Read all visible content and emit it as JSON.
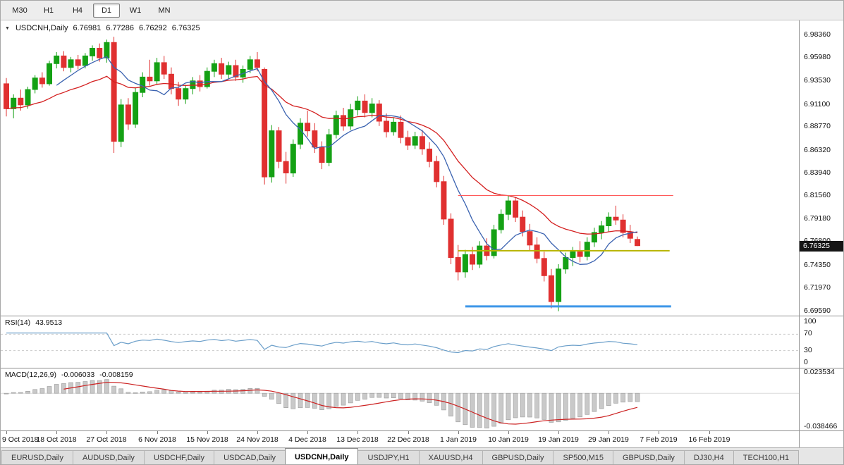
{
  "toolbar": {
    "timeframes": [
      {
        "label": "M30",
        "active": false
      },
      {
        "label": "H1",
        "active": false
      },
      {
        "label": "H4",
        "active": false
      },
      {
        "label": "D1",
        "active": true
      },
      {
        "label": "W1",
        "active": false
      },
      {
        "label": "MN",
        "active": false
      }
    ]
  },
  "chart": {
    "title": {
      "symbol": "USDCNH,Daily",
      "open": "6.76981",
      "high": "6.77286",
      "low": "6.76292",
      "close": "6.76325"
    },
    "price_badge": "6.76325"
  },
  "indicators": {
    "rsi": {
      "label": "RSI(14)",
      "value": "43.9513"
    },
    "macd": {
      "label": "MACD(12,26,9)",
      "value_main": "-0.006033",
      "value_signal": "-0.008159"
    }
  },
  "colors": {
    "bull": "#14a114",
    "bear": "#e03030",
    "ma_fast": "#3a62b0",
    "ma_slow": "#d42020",
    "rsi_line": "#6a9ec9",
    "rsi_guide": "#c9c9c9",
    "macd_hist_fill": "#c9c9c9",
    "macd_hist_stroke": "#9a9a9a",
    "macd_signal": "#cc2222",
    "resistance": "#ff5a5a",
    "support": "#b8b400",
    "lower_support": "#3e97e8",
    "badge_bg": "#151515"
  },
  "chart_data": {
    "type": "candlestick",
    "symbol": "USDCNH",
    "timeframe": "Daily",
    "ylim": [
      6.6904,
      6.998
    ],
    "price_axis": [
      {
        "label": "6.98360",
        "value": 6.9836
      },
      {
        "label": "6.95980",
        "value": 6.9598
      },
      {
        "label": "6.93530",
        "value": 6.9353
      },
      {
        "label": "6.91100",
        "value": 6.911
      },
      {
        "label": "6.88770",
        "value": 6.8877
      },
      {
        "label": "6.86320",
        "value": 6.8632
      },
      {
        "label": "6.83940",
        "value": 6.8394
      },
      {
        "label": "6.81560",
        "value": 6.8156
      },
      {
        "label": "6.79180",
        "value": 6.7918
      },
      {
        "label": "6.76800",
        "value": 6.768
      },
      {
        "label": "6.74350",
        "value": 6.7435
      },
      {
        "label": "6.71970",
        "value": 6.7197
      },
      {
        "label": "6.69590",
        "value": 6.6959
      }
    ],
    "x_ticks": [
      {
        "label": "9 Oct 2018",
        "bar": 0
      },
      {
        "label": "18 Oct 2018",
        "bar": 7
      },
      {
        "label": "27 Oct 2018",
        "bar": 14
      },
      {
        "label": "6 Nov 2018",
        "bar": 21
      },
      {
        "label": "15 Nov 2018",
        "bar": 28
      },
      {
        "label": "24 Nov 2018",
        "bar": 35
      },
      {
        "label": "4 Dec 2018",
        "bar": 42
      },
      {
        "label": "13 Dec 2018",
        "bar": 49
      },
      {
        "label": "22 Dec 2018",
        "bar": 56
      },
      {
        "label": "1 Jan 2019",
        "bar": 63
      },
      {
        "label": "10 Jan 2019",
        "bar": 70
      },
      {
        "label": "19 Jan 2019",
        "bar": 77
      },
      {
        "label": "29 Jan 2019",
        "bar": 84
      },
      {
        "label": "7 Feb 2019",
        "bar": 91
      },
      {
        "label": "16 Feb 2019",
        "bar": 98
      }
    ],
    "candles": [
      [
        6.932,
        6.938,
        6.898,
        6.906
      ],
      [
        6.906,
        6.921,
        6.896,
        6.917
      ],
      [
        6.917,
        6.926,
        6.904,
        6.91
      ],
      [
        6.91,
        6.929,
        6.906,
        6.926
      ],
      [
        6.926,
        6.941,
        6.922,
        6.938
      ],
      [
        6.938,
        6.944,
        6.928,
        6.932
      ],
      [
        6.932,
        6.956,
        6.93,
        6.953
      ],
      [
        6.953,
        6.965,
        6.948,
        6.961
      ],
      [
        6.961,
        6.966,
        6.945,
        6.949
      ],
      [
        6.949,
        6.96,
        6.944,
        6.957
      ],
      [
        6.957,
        6.962,
        6.947,
        6.951
      ],
      [
        6.951,
        6.964,
        6.948,
        6.961
      ],
      [
        6.961,
        6.972,
        6.956,
        6.969
      ],
      [
        6.969,
        6.974,
        6.955,
        6.959
      ],
      [
        6.959,
        6.978,
        6.954,
        6.975
      ],
      [
        6.975,
        6.981,
        6.86,
        6.872
      ],
      [
        6.872,
        6.916,
        6.866,
        6.91
      ],
      [
        6.91,
        6.917,
        6.884,
        6.89
      ],
      [
        6.89,
        6.928,
        6.886,
        6.923
      ],
      [
        6.923,
        6.944,
        6.918,
        6.939
      ],
      [
        6.939,
        6.957,
        6.93,
        6.935
      ],
      [
        6.935,
        6.959,
        6.931,
        6.954
      ],
      [
        6.954,
        6.961,
        6.937,
        6.942
      ],
      [
        6.942,
        6.949,
        6.921,
        6.927
      ],
      [
        6.927,
        6.934,
        6.909,
        6.916
      ],
      [
        6.916,
        6.931,
        6.911,
        6.927
      ],
      [
        6.927,
        6.939,
        6.921,
        6.935
      ],
      [
        6.935,
        6.941,
        6.924,
        6.929
      ],
      [
        6.929,
        6.949,
        6.927,
        6.945
      ],
      [
        6.945,
        6.957,
        6.939,
        6.953
      ],
      [
        6.953,
        6.959,
        6.937,
        6.942
      ],
      [
        6.942,
        6.955,
        6.937,
        6.951
      ],
      [
        6.951,
        6.957,
        6.935,
        6.939
      ],
      [
        6.939,
        6.951,
        6.933,
        6.947
      ],
      [
        6.947,
        6.961,
        6.943,
        6.957
      ],
      [
        6.957,
        6.965,
        6.945,
        6.949
      ],
      [
        6.947,
        6.949,
        6.827,
        6.835
      ],
      [
        6.835,
        6.889,
        6.829,
        6.883
      ],
      [
        6.883,
        6.887,
        6.844,
        6.851
      ],
      [
        6.851,
        6.861,
        6.828,
        6.839
      ],
      [
        6.839,
        6.874,
        6.835,
        6.869
      ],
      [
        6.869,
        6.896,
        6.864,
        6.891
      ],
      [
        6.891,
        6.904,
        6.877,
        6.883
      ],
      [
        6.883,
        6.891,
        6.86,
        6.866
      ],
      [
        6.866,
        6.872,
        6.843,
        6.85
      ],
      [
        6.85,
        6.885,
        6.846,
        6.879
      ],
      [
        6.879,
        6.904,
        6.875,
        6.899
      ],
      [
        6.899,
        6.907,
        6.883,
        6.888
      ],
      [
        6.888,
        6.911,
        6.884,
        6.905
      ],
      [
        6.905,
        6.919,
        6.899,
        6.914
      ],
      [
        6.914,
        6.921,
        6.897,
        6.902
      ],
      [
        6.902,
        6.917,
        6.897,
        6.911
      ],
      [
        6.911,
        6.915,
        6.888,
        6.893
      ],
      [
        6.893,
        6.901,
        6.876,
        6.882
      ],
      [
        6.882,
        6.897,
        6.878,
        6.892
      ],
      [
        6.892,
        6.899,
        6.87,
        6.876
      ],
      [
        6.876,
        6.883,
        6.863,
        6.868
      ],
      [
        6.868,
        6.882,
        6.864,
        6.877
      ],
      [
        6.877,
        6.884,
        6.858,
        6.864
      ],
      [
        6.864,
        6.871,
        6.845,
        6.851
      ],
      [
        6.851,
        6.857,
        6.824,
        6.83
      ],
      [
        6.83,
        6.836,
        6.785,
        6.791
      ],
      [
        6.791,
        6.797,
        6.744,
        6.751
      ],
      [
        6.751,
        6.764,
        6.727,
        6.736
      ],
      [
        6.736,
        6.759,
        6.73,
        6.754
      ],
      [
        6.754,
        6.762,
        6.738,
        6.744
      ],
      [
        6.744,
        6.768,
        6.74,
        6.763
      ],
      [
        6.763,
        6.771,
        6.748,
        6.753
      ],
      [
        6.753,
        6.785,
        6.75,
        6.78
      ],
      [
        6.78,
        6.801,
        6.776,
        6.796
      ],
      [
        6.796,
        6.816,
        6.79,
        6.81
      ],
      [
        6.81,
        6.814,
        6.788,
        6.793
      ],
      [
        6.793,
        6.8,
        6.773,
        6.778
      ],
      [
        6.778,
        6.786,
        6.758,
        6.764
      ],
      [
        6.764,
        6.772,
        6.745,
        6.75
      ],
      [
        6.75,
        6.757,
        6.726,
        6.732
      ],
      [
        6.732,
        6.739,
        6.698,
        6.705
      ],
      [
        6.705,
        6.744,
        6.695,
        6.739
      ],
      [
        6.739,
        6.756,
        6.734,
        6.751
      ],
      [
        6.751,
        6.762,
        6.742,
        6.757
      ],
      [
        6.757,
        6.768,
        6.746,
        6.752
      ],
      [
        6.752,
        6.772,
        6.748,
        6.767
      ],
      [
        6.767,
        6.782,
        6.762,
        6.777
      ],
      [
        6.777,
        6.789,
        6.77,
        6.784
      ],
      [
        6.784,
        6.798,
        6.778,
        6.793
      ],
      [
        6.793,
        6.805,
        6.785,
        6.79
      ],
      [
        6.79,
        6.796,
        6.772,
        6.777
      ],
      [
        6.777,
        6.785,
        6.766,
        6.771
      ],
      [
        6.76981,
        6.77286,
        6.76292,
        6.76325
      ]
    ],
    "overlays": {
      "ma_fast_period": 8,
      "ma_slow_period": 22
    },
    "levels": [
      {
        "name": "resistance-line",
        "price": 6.8156,
        "width": 1,
        "from_bar": 63,
        "to_bar": 93
      },
      {
        "name": "support-line",
        "price": 6.758,
        "width": 2,
        "from_bar": 63,
        "to_bar": 92.5
      },
      {
        "name": "lower-support-line",
        "price": 6.7,
        "width": 3,
        "from_bar": 64,
        "to_bar": 92.7
      }
    ],
    "rsi": {
      "period": 14,
      "range": [
        0,
        100
      ],
      "guide_levels": [
        70,
        30
      ],
      "axis_labels": [
        {
          "label": "100",
          "value": 100
        },
        {
          "label": "70",
          "value": 70
        },
        {
          "label": "30",
          "value": 30
        },
        {
          "label": "0",
          "value": 0
        }
      ]
    },
    "macd": {
      "fast": 12,
      "slow": 26,
      "signal": 9,
      "range": [
        -0.038466,
        0.023534
      ],
      "axis_labels": [
        {
          "label": "0.023534",
          "value": 0.023534
        },
        {
          "label": "-0.038466",
          "value": -0.038466
        }
      ]
    }
  },
  "tabs": [
    {
      "label": "EURUSD,Daily",
      "active": false
    },
    {
      "label": "AUDUSD,Daily",
      "active": false
    },
    {
      "label": "USDCHF,Daily",
      "active": false
    },
    {
      "label": "USDCAD,Daily",
      "active": false
    },
    {
      "label": "USDCNH,Daily",
      "active": true
    },
    {
      "label": "USDJPY,H1",
      "active": false
    },
    {
      "label": "XAUUSD,H4",
      "active": false
    },
    {
      "label": "GBPUSD,Daily",
      "active": false
    },
    {
      "label": "SP500,M15",
      "active": false
    },
    {
      "label": "GBPUSD,Daily",
      "active": false
    },
    {
      "label": "DJ30,H4",
      "active": false
    },
    {
      "label": "TECH100,H1",
      "active": false
    }
  ]
}
